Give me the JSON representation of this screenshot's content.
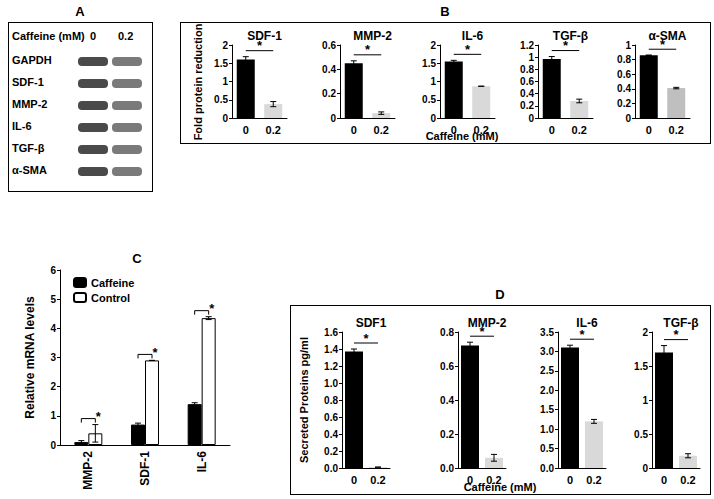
{
  "panels": {
    "A": {},
    "B": {
      "ylabel": "Fold protein reduction",
      "xlabel": "Caffeine (mM)"
    },
    "C": {},
    "D": {
      "ylabel": "Secreted Proteins pg/ml",
      "xlabel": "Caffeine (mM)"
    }
  },
  "blot": {
    "panel": "A",
    "header": "Caffeine (mM)",
    "lanes": [
      "0",
      "0.2"
    ],
    "rows": [
      "GAPDH",
      "SDF-1",
      "MMP-2",
      "IL-6",
      "TGF-β",
      "α-SMA"
    ]
  },
  "chart_data": [
    {
      "panel": "B",
      "type": "bar",
      "title": "SDF-1",
      "categories": [
        "0",
        "0.2"
      ],
      "values": [
        1.6,
        0.38
      ],
      "errors": [
        0.08,
        0.07
      ],
      "colors": [
        "#000000",
        "#d9d9d9"
      ],
      "ylim": [
        0,
        2
      ],
      "yticks": [
        0,
        0.5,
        1,
        1.5,
        2
      ],
      "annotations": [
        "*"
      ]
    },
    {
      "panel": "B",
      "type": "bar",
      "title": "MMP-2",
      "categories": [
        "0",
        "0.2"
      ],
      "values": [
        0.45,
        0.04
      ],
      "errors": [
        0.02,
        0.01
      ],
      "colors": [
        "#000000",
        "#d9d9d9"
      ],
      "ylim": [
        0,
        0.6
      ],
      "yticks": [
        0,
        0.2,
        0.4,
        0.6
      ],
      "annotations": [
        "*"
      ]
    },
    {
      "panel": "B",
      "type": "bar",
      "title": "IL-6",
      "categories": [
        "0",
        "0.2"
      ],
      "values": [
        1.55,
        0.87
      ],
      "errors": [
        0.03,
        0
      ],
      "colors": [
        "#000000",
        "#d9d9d9"
      ],
      "ylim": [
        0,
        2
      ],
      "yticks": [
        0,
        0.5,
        1,
        1.5,
        2
      ],
      "annotations": [
        "*"
      ]
    },
    {
      "panel": "B",
      "type": "bar",
      "title": "TGF-β",
      "categories": [
        "0",
        "0.2"
      ],
      "values": [
        0.97,
        0.28
      ],
      "errors": [
        0.04,
        0.03
      ],
      "colors": [
        "#000000",
        "#d9d9d9"
      ],
      "ylim": [
        0,
        1.2
      ],
      "yticks": [
        0,
        0.2,
        0.4,
        0.6,
        0.8,
        1,
        1.2
      ],
      "annotations": [
        "*"
      ]
    },
    {
      "panel": "B",
      "type": "bar",
      "title": "α-SMA",
      "categories": [
        "0",
        "0.2"
      ],
      "values": [
        0.86,
        0.41
      ],
      "errors": [
        0,
        0.01
      ],
      "colors": [
        "#000000",
        "#bfbfbf"
      ],
      "ylim": [
        0,
        1
      ],
      "yticks": [
        0,
        0.2,
        0.4,
        0.6,
        0.8,
        1
      ],
      "annotations": [
        "*"
      ]
    },
    {
      "panel": "C",
      "type": "bar",
      "ylabel": "Relative mRNA levels",
      "categories": [
        "MMP-2",
        "SDF-1",
        "IL-6"
      ],
      "series": [
        {
          "name": "Caffeine",
          "color": "#000000",
          "values": [
            0.1,
            0.7,
            1.4
          ],
          "errors": [
            0.05,
            0.05,
            0.05
          ]
        },
        {
          "name": "Control",
          "color": "#ffffff",
          "values": [
            0.4,
            2.9,
            4.35
          ],
          "errors": [
            0.3,
            0,
            0.05
          ]
        }
      ],
      "ylim": [
        0,
        6
      ],
      "yticks": [
        0,
        1,
        2,
        3,
        4,
        5,
        6
      ],
      "legend": "upper left",
      "annotations": [
        "*",
        "*",
        "*"
      ]
    },
    {
      "panel": "D",
      "type": "bar",
      "title": "SDF1",
      "categories": [
        "0",
        "0.2"
      ],
      "values": [
        1.37,
        0.01
      ],
      "errors": [
        0.03,
        0
      ],
      "colors": [
        "#000000",
        "#d9d9d9"
      ],
      "ylim": [
        0,
        1.6
      ],
      "yticks": [
        {
          "value": 0,
          "label": "0.0"
        },
        {
          "value": 0.2,
          "label": "0.2"
        },
        {
          "value": 0.4,
          "label": "0.4"
        },
        {
          "value": 0.6,
          "label": "0.6"
        },
        {
          "value": 0.8,
          "label": "0.8"
        },
        {
          "value": 1,
          "label": "1.0"
        },
        {
          "value": 1.2,
          "label": "1.2"
        },
        {
          "value": 1.4,
          "label": "1.4"
        },
        {
          "value": 1.6,
          "label": "1.6"
        }
      ],
      "annotations": [
        "*"
      ]
    },
    {
      "panel": "D",
      "type": "bar",
      "title": "MMP-2",
      "categories": [
        "0",
        "0.2"
      ],
      "values": [
        0.72,
        0.06
      ],
      "errors": [
        0.02,
        0.02
      ],
      "colors": [
        "#000000",
        "#d9d9d9"
      ],
      "ylim": [
        0,
        0.8
      ],
      "yticks": [
        {
          "value": 0,
          "label": "0.0"
        },
        {
          "value": 0.2,
          "label": "0.2"
        },
        {
          "value": 0.4,
          "label": "0.4"
        },
        {
          "value": 0.6,
          "label": "0.6"
        },
        {
          "value": 0.8,
          "label": "0.8"
        }
      ],
      "annotations": [
        "*"
      ]
    },
    {
      "panel": "D",
      "type": "bar",
      "title": "IL-6",
      "categories": [
        "0",
        "0.2"
      ],
      "values": [
        3.1,
        1.2
      ],
      "errors": [
        0.06,
        0.05
      ],
      "colors": [
        "#000000",
        "#d9d9d9"
      ],
      "ylim": [
        0,
        3.5
      ],
      "yticks": [
        {
          "value": 0,
          "label": "0.0"
        },
        {
          "value": 0.5,
          "label": "0.5"
        },
        {
          "value": 1,
          "label": "1.0"
        },
        {
          "value": 1.5,
          "label": "1.5"
        },
        {
          "value": 2,
          "label": "2.0"
        },
        {
          "value": 2.5,
          "label": "2.5"
        },
        {
          "value": 3,
          "label": "3.0"
        },
        {
          "value": 3.5,
          "label": "3.5"
        }
      ],
      "annotations": [
        "*"
      ]
    },
    {
      "panel": "D",
      "type": "bar",
      "title": "TGF-β",
      "categories": [
        "0",
        "0.2"
      ],
      "values": [
        1.7,
        0.18
      ],
      "errors": [
        0.1,
        0.03
      ],
      "colors": [
        "#000000",
        "#d9d9d9"
      ],
      "ylim": [
        0,
        2
      ],
      "yticks": [
        0,
        0.5,
        1,
        1.5,
        2
      ],
      "annotations": [
        "*"
      ]
    }
  ]
}
